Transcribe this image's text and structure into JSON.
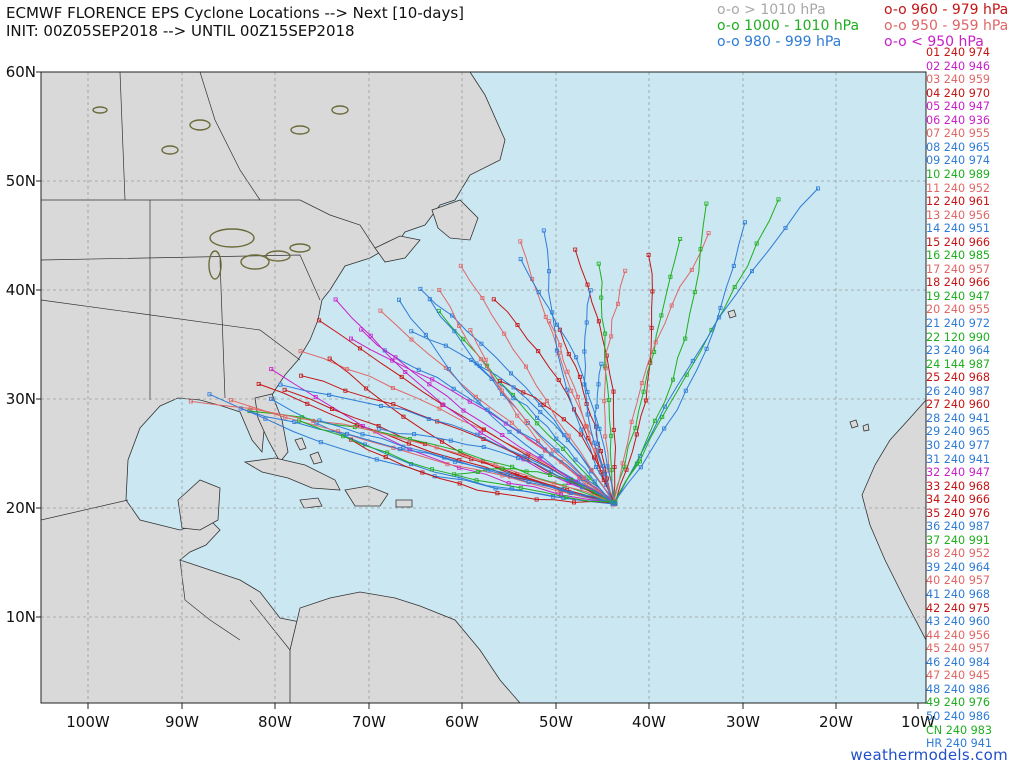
{
  "header": {
    "line1": "ECMWF FLORENCE EPS Cyclone Locations --> Next [10-days]",
    "line2": "INIT: 00Z05SEP2018 --> UNTIL 00Z15SEP2018"
  },
  "pressure_legend": [
    {
      "label": "o-o > 1010 hPa",
      "color": "#a8a8a8"
    },
    {
      "label": "o-o 1000 - 1010 hPa",
      "color": "#1fae1f"
    },
    {
      "label": "o-o 980 - 999 hPa",
      "color": "#2e7bd6"
    },
    {
      "label": "o-o 960 - 979 hPa",
      "color": "#c41414"
    },
    {
      "label": "o-o 950 - 959 hPa",
      "color": "#e06666"
    },
    {
      "label": "o-o < 950 hPa",
      "color": "#c820c8"
    }
  ],
  "axes": {
    "lat_labels": [
      "60N",
      "50N",
      "40N",
      "30N",
      "20N",
      "10N"
    ],
    "lon_labels": [
      "100W",
      "90W",
      "80W",
      "70W",
      "60W",
      "50W",
      "40W",
      "30W",
      "20W",
      "10W"
    ]
  },
  "members": [
    {
      "label": "01 240 974",
      "color": "#c41414"
    },
    {
      "label": "02 240 946",
      "color": "#c820c8"
    },
    {
      "label": "03 240 959",
      "color": "#e06666"
    },
    {
      "label": "04 240 970",
      "color": "#c41414"
    },
    {
      "label": "05 240 947",
      "color": "#c820c8"
    },
    {
      "label": "06 240 936",
      "color": "#c820c8"
    },
    {
      "label": "07 240 955",
      "color": "#e06666"
    },
    {
      "label": "08 240 965",
      "color": "#2e7bd6"
    },
    {
      "label": "09 240 974",
      "color": "#2e7bd6"
    },
    {
      "label": "10 240 989",
      "color": "#1fae1f"
    },
    {
      "label": "11 240 952",
      "color": "#e06666"
    },
    {
      "label": "12 240 961",
      "color": "#c41414"
    },
    {
      "label": "13 240 956",
      "color": "#e06666"
    },
    {
      "label": "14 240 951",
      "color": "#2e7bd6"
    },
    {
      "label": "15 240 966",
      "color": "#c41414"
    },
    {
      "label": "16 240 985",
      "color": "#1fae1f"
    },
    {
      "label": "17 240 957",
      "color": "#e06666"
    },
    {
      "label": "18 240 966",
      "color": "#c41414"
    },
    {
      "label": "19 240 947",
      "color": "#1fae1f"
    },
    {
      "label": "20 240 955",
      "color": "#e06666"
    },
    {
      "label": "21 240 972",
      "color": "#2e7bd6"
    },
    {
      "label": "22 120 990",
      "color": "#1fae1f"
    },
    {
      "label": "23 240 964",
      "color": "#2e7bd6"
    },
    {
      "label": "24 144 987",
      "color": "#1fae1f"
    },
    {
      "label": "25 240 968",
      "color": "#c41414"
    },
    {
      "label": "26 240 987",
      "color": "#2e7bd6"
    },
    {
      "label": "27 240 960",
      "color": "#c41414"
    },
    {
      "label": "28 240 941",
      "color": "#2e7bd6"
    },
    {
      "label": "29 240 965",
      "color": "#2e7bd6"
    },
    {
      "label": "30 240 977",
      "color": "#2e7bd6"
    },
    {
      "label": "31 240 941",
      "color": "#2e7bd6"
    },
    {
      "label": "32 240 947",
      "color": "#c820c8"
    },
    {
      "label": "33 240 968",
      "color": "#c41414"
    },
    {
      "label": "34 240 966",
      "color": "#c41414"
    },
    {
      "label": "35 240 976",
      "color": "#c41414"
    },
    {
      "label": "36 240 987",
      "color": "#2e7bd6"
    },
    {
      "label": "37 240 991",
      "color": "#1fae1f"
    },
    {
      "label": "38 240 952",
      "color": "#e06666"
    },
    {
      "label": "39 240 964",
      "color": "#2e7bd6"
    },
    {
      "label": "40 240 957",
      "color": "#e06666"
    },
    {
      "label": "41 240 968",
      "color": "#2e7bd6"
    },
    {
      "label": "42 240 975",
      "color": "#c41414"
    },
    {
      "label": "43 240 960",
      "color": "#2e7bd6"
    },
    {
      "label": "44 240 956",
      "color": "#e06666"
    },
    {
      "label": "45 240 957",
      "color": "#e06666"
    },
    {
      "label": "46 240 984",
      "color": "#2e7bd6"
    },
    {
      "label": "47 240 945",
      "color": "#e06666"
    },
    {
      "label": "48 240 986",
      "color": "#2e7bd6"
    },
    {
      "label": "49 240 976",
      "color": "#1fae1f"
    },
    {
      "label": "50 240 986",
      "color": "#2e7bd6"
    },
    {
      "label": "CN 240 983",
      "color": "#1fae1f"
    },
    {
      "label": "HR 240 941",
      "color": "#2e7bd6"
    }
  ],
  "credit": "weathermodels.com",
  "colors": {
    "ocean": "#cbe8f2",
    "land": "#d9d9d9",
    "border": "#333333",
    "grid": "#9a9a9a",
    "lakes": "#6b6b3a"
  }
}
